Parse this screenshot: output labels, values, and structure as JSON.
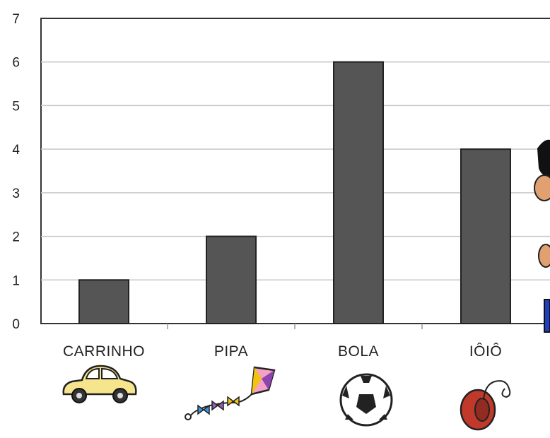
{
  "chart_data": {
    "type": "bar",
    "title": "",
    "xlabel": "",
    "ylabel": "",
    "categories": [
      "CARRINHO",
      "PIPA",
      "BOLA",
      "IÔIÔ"
    ],
    "values": [
      1,
      2,
      6,
      4
    ],
    "ylim": [
      0,
      7
    ],
    "yticks": [
      "0",
      "1",
      "2",
      "3",
      "4",
      "5",
      "6",
      "7"
    ],
    "grid": true,
    "legend": "none",
    "bar_color": "#555555",
    "category_icons": [
      "car-icon",
      "kite-icon",
      "soccer-ball-icon",
      "yoyo-icon"
    ]
  }
}
